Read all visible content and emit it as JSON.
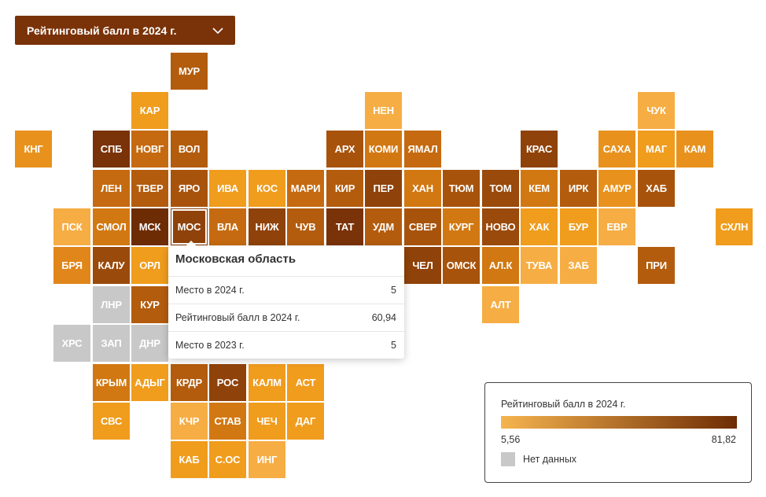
{
  "dropdown": {
    "label": "Рейтинговый балл в 2024 г."
  },
  "colors": {
    "nodata": "#c8c8c8",
    "scale_low": "#f6b44f",
    "scale_high": "#6e2c04"
  },
  "tiles": [
    {
      "label": "МУР",
      "color": "#b35c0e"
    },
    {
      "label": "КАР",
      "color": "#f09c1d"
    },
    {
      "label": "НЕН",
      "color": "#f6ad44"
    },
    {
      "label": "ЧУК",
      "color": "#f6ad44"
    },
    {
      "label": "КНГ",
      "color": "#e8921d"
    },
    {
      "label": "СПБ",
      "color": "#7a3208"
    },
    {
      "label": "НОВГ",
      "color": "#c56a10"
    },
    {
      "label": "ВОЛ",
      "color": "#b35c0e"
    },
    {
      "label": "АРХ",
      "color": "#a8530c"
    },
    {
      "label": "КОМИ",
      "color": "#d27812"
    },
    {
      "label": "ЯМАЛ",
      "color": "#c56a10"
    },
    {
      "label": "КРАС",
      "color": "#8f4209"
    },
    {
      "label": "САХА",
      "color": "#e8921d"
    },
    {
      "label": "МАГ",
      "color": "#f09c1d"
    },
    {
      "label": "КАМ",
      "color": "#e8921d"
    },
    {
      "label": "ЛЕН",
      "color": "#c56a10"
    },
    {
      "label": "ТВЕР",
      "color": "#b35c0e"
    },
    {
      "label": "ЯРО",
      "color": "#a8530c"
    },
    {
      "label": "ИВА",
      "color": "#f09c1d"
    },
    {
      "label": "КОС",
      "color": "#f09c1d"
    },
    {
      "label": "МАРИ",
      "color": "#c56a10"
    },
    {
      "label": "КИР",
      "color": "#b35c0e"
    },
    {
      "label": "ПЕР",
      "color": "#8f4209"
    },
    {
      "label": "ХАН",
      "color": "#d27812"
    },
    {
      "label": "ТЮМ",
      "color": "#a8530c"
    },
    {
      "label": "ТОМ",
      "color": "#9a4a0b"
    },
    {
      "label": "КЕМ",
      "color": "#d27812"
    },
    {
      "label": "ИРК",
      "color": "#b35c0e"
    },
    {
      "label": "АМУР",
      "color": "#e8921d"
    },
    {
      "label": "ХАБ",
      "color": "#a8530c"
    },
    {
      "label": "ПСК",
      "color": "#f6ad44"
    },
    {
      "label": "СМОЛ",
      "color": "#d27812"
    },
    {
      "label": "МСК",
      "color": "#6e2c04"
    },
    {
      "label": "МОС",
      "color": "#8f4209"
    },
    {
      "label": "ВЛА",
      "color": "#c56a10"
    },
    {
      "label": "НИЖ",
      "color": "#8f4209"
    },
    {
      "label": "ЧУВ",
      "color": "#b35c0e"
    },
    {
      "label": "ТАТ",
      "color": "#7a3208"
    },
    {
      "label": "УДМ",
      "color": "#b35c0e"
    },
    {
      "label": "СВЕР",
      "color": "#a8530c"
    },
    {
      "label": "КУРГ",
      "color": "#d27812"
    },
    {
      "label": "НОВО",
      "color": "#9a4a0b"
    },
    {
      "label": "ХАК",
      "color": "#f09c1d"
    },
    {
      "label": "БУР",
      "color": "#f09c1d"
    },
    {
      "label": "ЕВР",
      "color": "#f6ad44"
    },
    {
      "label": "СХЛН",
      "color": "#f09c1d"
    },
    {
      "label": "БРЯ",
      "color": "#e0861a"
    },
    {
      "label": "КАЛУ",
      "color": "#9a4a0b"
    },
    {
      "label": "ОРЛ",
      "color": "#f09c1d"
    },
    {
      "label": "ЧЕЛ",
      "color": "#8f4209"
    },
    {
      "label": "ОМСК",
      "color": "#a8530c"
    },
    {
      "label": "АЛ.К",
      "color": "#d27812"
    },
    {
      "label": "ТУВА",
      "color": "#f6ad44"
    },
    {
      "label": "ЗАБ",
      "color": "#f6ad44"
    },
    {
      "label": "ПРИ",
      "color": "#b35c0e"
    },
    {
      "label": "ЛНР",
      "color": "#c8c8c8"
    },
    {
      "label": "КУР",
      "color": "#b35c0e"
    },
    {
      "label": "АЛТ",
      "color": "#f6ad44"
    },
    {
      "label": "ХРС",
      "color": "#c8c8c8"
    },
    {
      "label": "ЗАП",
      "color": "#c8c8c8"
    },
    {
      "label": "ДНР",
      "color": "#c8c8c8"
    },
    {
      "label": "КРЫМ",
      "color": "#d27812"
    },
    {
      "label": "АДЫГ",
      "color": "#f09c1d"
    },
    {
      "label": "КРДР",
      "color": "#b35c0e"
    },
    {
      "label": "РОС",
      "color": "#8f4209"
    },
    {
      "label": "КАЛМ",
      "color": "#f09c1d"
    },
    {
      "label": "АСТ",
      "color": "#f09c1d"
    },
    {
      "label": "СВС",
      "color": "#f09c1d"
    },
    {
      "label": "КЧР",
      "color": "#f6ad44"
    },
    {
      "label": "СТАВ",
      "color": "#d27812"
    },
    {
      "label": "ЧЕЧ",
      "color": "#f09c1d"
    },
    {
      "label": "ДАГ",
      "color": "#f09c1d"
    },
    {
      "label": "КАБ",
      "color": "#f09c1d"
    },
    {
      "label": "С.ОС",
      "color": "#f09c1d"
    },
    {
      "label": "ИНГ",
      "color": "#f6ad44"
    }
  ],
  "tooltip": {
    "title": "Московская область",
    "rows": [
      {
        "label": "Место в 2024 г.",
        "value": "5"
      },
      {
        "label": "Рейтинговый балл в 2024 г.",
        "value": "60,94"
      },
      {
        "label": "Место в 2023 г.",
        "value": "5"
      }
    ]
  },
  "legend": {
    "title": "Рейтинговый балл в 2024 г.",
    "min": "5,56",
    "max": "81,82",
    "nodata_label": "Нет данных"
  }
}
